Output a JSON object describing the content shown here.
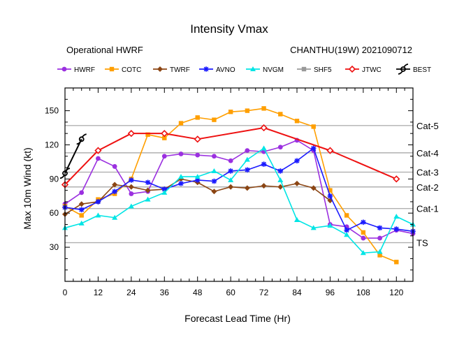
{
  "chart_data": {
    "type": "line",
    "title": "Intensity Vmax",
    "subtitle_left": "Operational HWRF",
    "subtitle_right": "CHANTHU(19W) 2021090712",
    "xlabel": "Forecast Lead Time (Hr)",
    "ylabel": "Max 10m Wind (kt)",
    "xlim": [
      0,
      126
    ],
    "ylim": [
      0,
      170
    ],
    "xticks": [
      0,
      12,
      24,
      36,
      48,
      60,
      72,
      84,
      96,
      108,
      120
    ],
    "yticks": [
      30,
      60,
      90,
      120,
      150
    ],
    "categories": [
      {
        "label": "Cat-5",
        "value": 137
      },
      {
        "label": "Cat-4",
        "value": 113
      },
      {
        "label": "Cat-3",
        "value": 96
      },
      {
        "label": "Cat-2",
        "value": 83
      },
      {
        "label": "Cat-1",
        "value": 64
      },
      {
        "label": "TS",
        "value": 34
      }
    ],
    "series": [
      {
        "name": "HWRF",
        "color": "#9b30e0",
        "marker": "circle",
        "x": [
          0,
          6,
          12,
          18,
          24,
          30,
          36,
          42,
          48,
          54,
          60,
          66,
          72,
          78,
          84,
          90,
          96,
          102,
          108,
          114,
          120,
          126
        ],
        "y": [
          68,
          78,
          108,
          101,
          77,
          79,
          110,
          112,
          111,
          110,
          106,
          115,
          114,
          118,
          124,
          115,
          50,
          48,
          38,
          38,
          45,
          42
        ]
      },
      {
        "name": "COTC",
        "color": "#ff9f00",
        "marker": "square",
        "x": [
          0,
          6,
          12,
          18,
          24,
          30,
          36,
          42,
          48,
          54,
          60,
          66,
          72,
          78,
          84,
          90,
          96,
          102,
          108,
          114,
          120
        ],
        "y": [
          66,
          58,
          72,
          77,
          90,
          129,
          126,
          139,
          144,
          142,
          149,
          150,
          152,
          147,
          141,
          136,
          80,
          58,
          43,
          23,
          17
        ]
      },
      {
        "name": "TWRF",
        "color": "#8b4513",
        "marker": "diamond",
        "x": [
          0,
          6,
          12,
          18,
          24,
          30,
          36,
          42,
          48,
          54,
          60,
          66,
          72,
          78,
          84,
          90,
          96
        ],
        "y": [
          59,
          68,
          70,
          85,
          83,
          80,
          81,
          90,
          87,
          79,
          83,
          82,
          84,
          83,
          86,
          82,
          71
        ]
      },
      {
        "name": "AVNO",
        "color": "#1a1aff",
        "marker": "star",
        "x": [
          0,
          6,
          12,
          18,
          24,
          30,
          36,
          42,
          48,
          54,
          60,
          66,
          72,
          78,
          84,
          90,
          96,
          102,
          108,
          114,
          120,
          126
        ],
        "y": [
          65,
          63,
          70,
          79,
          89,
          87,
          81,
          86,
          89,
          88,
          97,
          98,
          103,
          97,
          106,
          117,
          75,
          45,
          52,
          47,
          46,
          44
        ]
      },
      {
        "name": "NVGM",
        "color": "#00e5e5",
        "marker": "triangle",
        "x": [
          0,
          6,
          12,
          18,
          24,
          30,
          36,
          42,
          48,
          54,
          60,
          66,
          72,
          78,
          84,
          90,
          96,
          102,
          108,
          114,
          120,
          126
        ],
        "y": [
          47,
          51,
          58,
          56,
          66,
          72,
          78,
          92,
          92,
          97,
          89,
          107,
          117,
          89,
          54,
          47,
          49,
          41,
          25,
          26,
          57,
          50
        ]
      },
      {
        "name": "SHF5",
        "color": "#999999",
        "marker": "square",
        "x": [],
        "y": []
      },
      {
        "name": "JTWC",
        "color": "#ee1111",
        "marker": "hollow-diamond",
        "x": [
          0,
          12,
          24,
          36,
          48,
          72,
          96,
          120
        ],
        "y": [
          85,
          115,
          130,
          130,
          125,
          135,
          115,
          90
        ]
      },
      {
        "name": "BEST",
        "color": "#000000",
        "marker": "hurricane",
        "x": [
          0,
          6
        ],
        "y": [
          95,
          125
        ]
      }
    ]
  }
}
